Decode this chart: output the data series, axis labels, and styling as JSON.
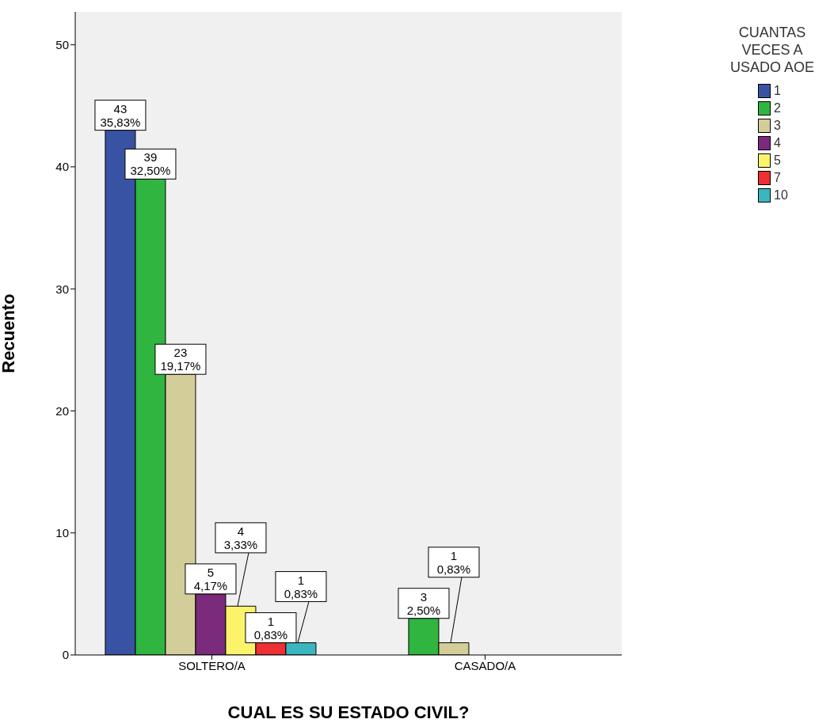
{
  "chart_data": {
    "type": "bar",
    "xlabel": "CUAL ES SU ESTADO CIVIL?",
    "ylabel": "Recuento",
    "legend_title": "CUANTAS VECES A USADO AOE",
    "legend": "right",
    "grid": false,
    "categories": [
      "SOLTERO/A",
      "CASADO/A"
    ],
    "ylim": [
      0,
      52.7
    ],
    "yticks": [
      0,
      10,
      20,
      30,
      40,
      50
    ],
    "series": [
      {
        "name": "1",
        "color": "#3953a4",
        "values": [
          43,
          null
        ],
        "value_labels": [
          "43\n35,83%",
          null
        ]
      },
      {
        "name": "2",
        "color": "#2fb540",
        "values": [
          39,
          3
        ],
        "value_labels": [
          "39\n32,50%",
          "3\n2,50%"
        ]
      },
      {
        "name": "3",
        "color": "#d3ce99",
        "values": [
          23,
          1
        ],
        "value_labels": [
          "23\n19,17%",
          "1\n0,83%"
        ]
      },
      {
        "name": "4",
        "color": "#7b2a7c",
        "values": [
          5,
          null
        ],
        "value_labels": [
          "5\n4,17%",
          null
        ]
      },
      {
        "name": "5",
        "color": "#fbf46b",
        "values": [
          4,
          null
        ],
        "value_labels": [
          "4\n3,33%",
          null
        ]
      },
      {
        "name": "7",
        "color": "#ee2f33",
        "values": [
          1,
          null
        ],
        "value_labels": [
          "1\n0,83%",
          null
        ]
      },
      {
        "name": "10",
        "color": "#3bb6bf",
        "values": [
          1,
          null
        ],
        "value_labels": [
          "1\n0,83%",
          null
        ]
      }
    ]
  }
}
